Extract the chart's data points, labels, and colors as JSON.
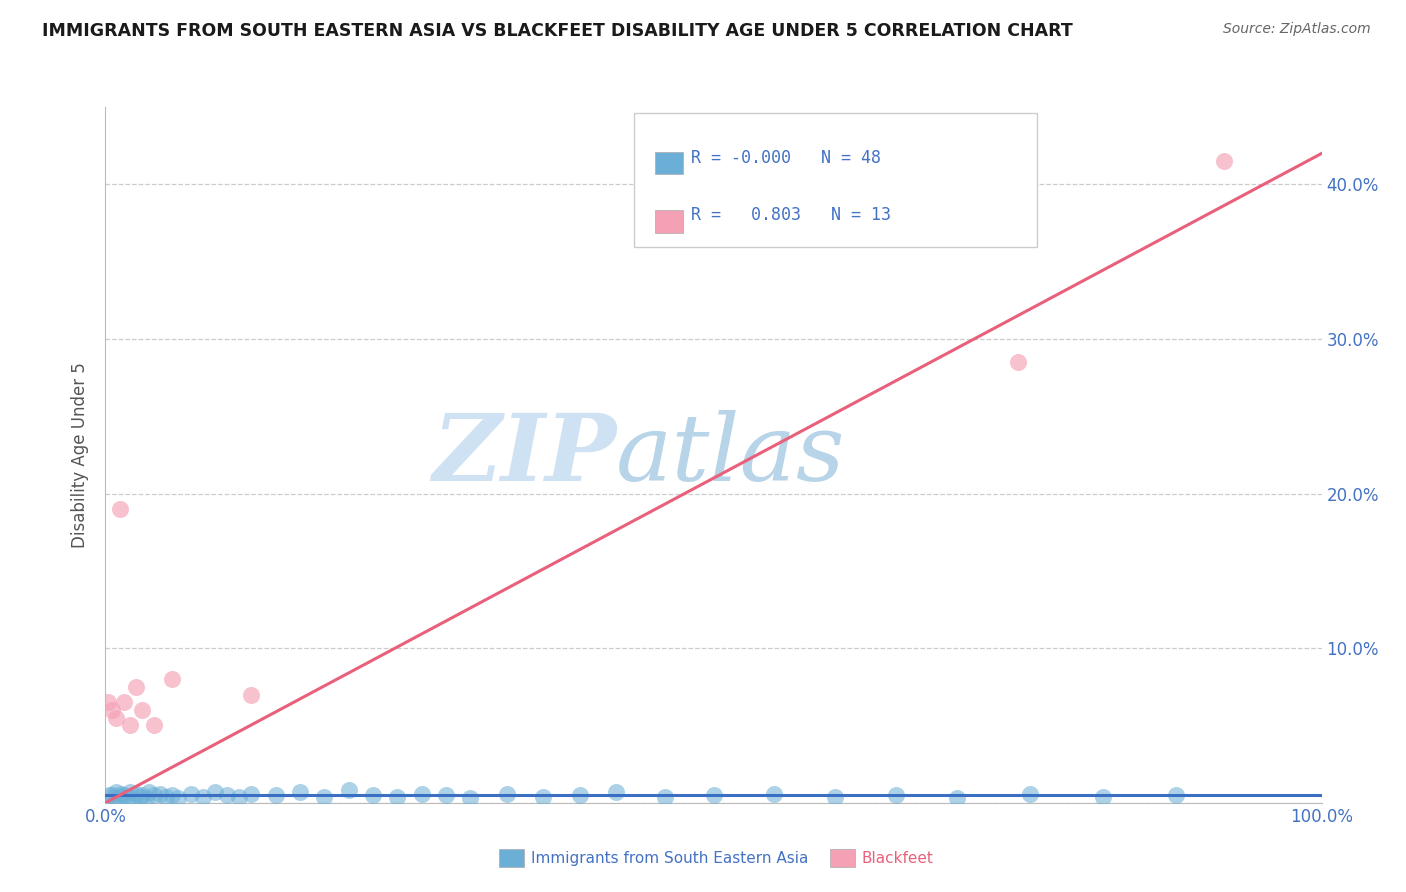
{
  "title": "IMMIGRANTS FROM SOUTH EASTERN ASIA VS BLACKFEET DISABILITY AGE UNDER 5 CORRELATION CHART",
  "source": "Source: ZipAtlas.com",
  "ylabel": "Disability Age Under 5",
  "legend_r1": "-0.000",
  "legend_n1": "48",
  "legend_r2": "0.803",
  "legend_n2": "13",
  "blue_color": "#6baed6",
  "pink_color": "#f4a0b5",
  "blue_line_color": "#3a6fc4",
  "pink_line_color": "#e8607a",
  "title_color": "#1a1a1a",
  "source_color": "#666666",
  "axis_label_color": "#4472c4",
  "watermark_zip_color": "#cfe2f3",
  "watermark_atlas_color": "#b8d4e8",
  "blue_scatter_x": [
    0.3,
    0.5,
    0.7,
    0.9,
    1.1,
    1.3,
    1.5,
    1.8,
    2.0,
    2.2,
    2.5,
    2.8,
    3.0,
    3.3,
    3.6,
    4.0,
    4.5,
    5.0,
    5.5,
    6.0,
    7.0,
    8.0,
    9.0,
    10.0,
    11.0,
    12.0,
    14.0,
    16.0,
    18.0,
    20.0,
    22.0,
    24.0,
    26.0,
    28.0,
    30.0,
    33.0,
    36.0,
    39.0,
    42.0,
    46.0,
    50.0,
    55.0,
    60.0,
    65.0,
    70.0,
    76.0,
    82.0,
    88.0
  ],
  "blue_scatter_y": [
    0.005,
    0.005,
    0.003,
    0.007,
    0.004,
    0.006,
    0.005,
    0.004,
    0.007,
    0.003,
    0.006,
    0.004,
    0.005,
    0.003,
    0.007,
    0.005,
    0.006,
    0.004,
    0.005,
    0.003,
    0.006,
    0.004,
    0.007,
    0.005,
    0.004,
    0.006,
    0.005,
    0.007,
    0.004,
    0.008,
    0.005,
    0.004,
    0.006,
    0.005,
    0.003,
    0.006,
    0.004,
    0.005,
    0.007,
    0.004,
    0.005,
    0.006,
    0.004,
    0.005,
    0.003,
    0.006,
    0.004,
    0.005
  ],
  "pink_scatter_x": [
    0.2,
    0.5,
    0.9,
    1.2,
    1.5,
    2.0,
    2.5,
    3.0,
    4.0,
    5.5,
    75.0,
    92.0,
    12.0
  ],
  "pink_scatter_y": [
    0.065,
    0.06,
    0.055,
    0.19,
    0.065,
    0.05,
    0.075,
    0.06,
    0.05,
    0.08,
    0.285,
    0.415,
    0.07
  ],
  "blue_trendline_x": [
    0.0,
    100.0
  ],
  "blue_trendline_y": [
    0.005,
    0.005
  ],
  "pink_trendline_x": [
    0.0,
    100.0
  ],
  "pink_trendline_y": [
    0.0,
    0.42
  ],
  "xlim": [
    0.0,
    100.0
  ],
  "ylim": [
    0.0,
    0.45
  ],
  "y_ticks": [
    0.0,
    0.1,
    0.2,
    0.3,
    0.4
  ],
  "y_tick_labels_right": [
    "",
    "10.0%",
    "20.0%",
    "30.0%",
    "40.0%"
  ],
  "x_ticks": [
    0,
    20,
    40,
    60,
    80,
    100
  ],
  "x_tick_labels": [
    "0.0%",
    "",
    "",
    "",
    "",
    "100.0%"
  ]
}
